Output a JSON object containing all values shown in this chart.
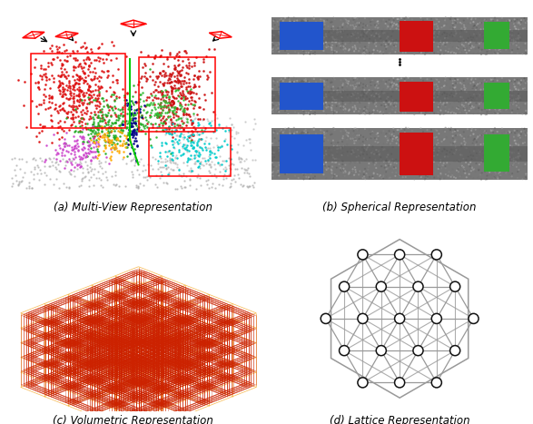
{
  "fig_width": 5.87,
  "fig_height": 4.67,
  "dpi": 100,
  "caption_a": "(a) Multi-View Representation",
  "caption_b": "(b) Spherical Representation",
  "caption_c": "(c) Volumetric Representation",
  "caption_d": "(d) Lattice Representation",
  "caption_fontsize": 8.5,
  "bg_color": "#ffffff",
  "lattice_line_color": "#999999",
  "lattice_circle_color": "#111111"
}
